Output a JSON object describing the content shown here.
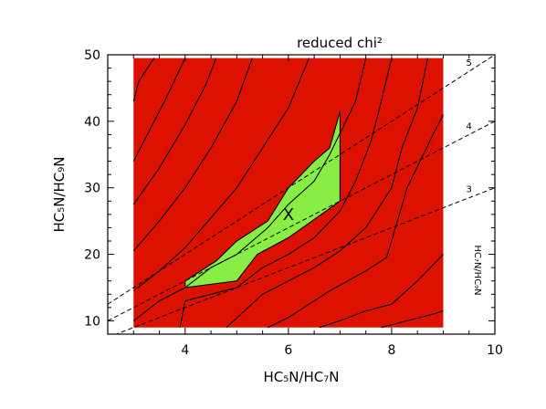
{
  "chart_data": {
    "type": "heatmap",
    "title": "reduced chi²",
    "xlabel": "HC₅N/HC₇N",
    "ylabel": "HC₅N/HC₉N",
    "right_label": "HC₇N/HC₉N",
    "xlim": [
      2.5,
      10
    ],
    "ylim": [
      8,
      50
    ],
    "x_ticks": [
      4,
      6,
      8,
      10
    ],
    "y_ticks": [
      10,
      20,
      30,
      40,
      50
    ],
    "grid": false,
    "colors": {
      "background_region": "#dd1100",
      "best_fit_region": "#88ee44",
      "contour": "#000000",
      "ratio_line": "#000000"
    },
    "data_extent": {
      "x": [
        3,
        9
      ],
      "y": [
        9,
        49.5
      ]
    },
    "best_fit_region": [
      [
        4,
        15
      ],
      [
        5,
        16
      ],
      [
        5.4,
        20
      ],
      [
        6,
        22.5
      ],
      [
        7,
        28
      ],
      [
        7,
        41.5
      ],
      [
        6.8,
        36
      ],
      [
        6.5,
        34
      ],
      [
        6,
        30
      ],
      [
        5.6,
        25
      ],
      [
        5,
        22
      ],
      [
        4.6,
        19
      ],
      [
        4,
        16
      ]
    ],
    "best_fit_marker": {
      "label": "X",
      "x": 6,
      "y": 26
    },
    "ratio_lines": [
      {
        "label": "3",
        "slope": 3,
        "intercept": 0
      },
      {
        "label": "4",
        "slope": 4,
        "intercept": 0
      },
      {
        "label": "5",
        "slope": 5,
        "intercept": 0
      }
    ],
    "contours": [
      [
        [
          3,
          43
        ],
        [
          3.1,
          46
        ],
        [
          3.4,
          49.5
        ]
      ],
      [
        [
          3,
          34
        ],
        [
          3.3,
          38.5
        ],
        [
          3.6,
          43
        ],
        [
          4,
          49.5
        ]
      ],
      [
        [
          3,
          27.5
        ],
        [
          3.5,
          33
        ],
        [
          4,
          39.5
        ],
        [
          4.4,
          45.5
        ],
        [
          4.6,
          49.5
        ]
      ],
      [
        [
          3,
          20.5
        ],
        [
          3.5,
          25
        ],
        [
          4,
          30
        ],
        [
          4.5,
          36
        ],
        [
          5,
          43
        ],
        [
          5.3,
          49.5
        ]
      ],
      [
        [
          3,
          14.5
        ],
        [
          3.5,
          17.5
        ],
        [
          4,
          21
        ],
        [
          4.5,
          25.5
        ],
        [
          5,
          30
        ],
        [
          5.5,
          36
        ],
        [
          6,
          42
        ],
        [
          6.4,
          49.5
        ]
      ],
      [
        [
          3,
          10
        ],
        [
          3.5,
          13
        ],
        [
          4,
          15
        ],
        [
          4.5,
          18
        ],
        [
          5,
          20
        ],
        [
          5.6,
          24
        ],
        [
          6,
          27.5
        ],
        [
          6.5,
          31
        ],
        [
          6.8,
          35
        ],
        [
          7.3,
          43
        ],
        [
          7.5,
          49.5
        ]
      ],
      [
        [
          3.9,
          9
        ],
        [
          4,
          13
        ],
        [
          4.5,
          14
        ],
        [
          5,
          15
        ],
        [
          5.5,
          18
        ],
        [
          6,
          20
        ],
        [
          6.5,
          22.5
        ],
        [
          7,
          26.5
        ],
        [
          7.3,
          31
        ],
        [
          7.6,
          37
        ],
        [
          7.8,
          43
        ],
        [
          8,
          49.5
        ]
      ],
      [
        [
          4.8,
          9
        ],
        [
          5.5,
          14
        ],
        [
          6,
          16
        ],
        [
          6.5,
          18
        ],
        [
          7,
          20.5
        ],
        [
          7.5,
          24
        ],
        [
          8,
          30
        ],
        [
          8.2,
          36
        ],
        [
          8.5,
          42
        ],
        [
          8.7,
          49.5
        ]
      ],
      [
        [
          5.6,
          9
        ],
        [
          6,
          10.5
        ],
        [
          6.8,
          14.5
        ],
        [
          7.5,
          17.5
        ],
        [
          7.9,
          19.5
        ],
        [
          8,
          22
        ],
        [
          8.3,
          30
        ],
        [
          8.8,
          38
        ],
        [
          9,
          41
        ]
      ],
      [
        [
          6.6,
          9
        ],
        [
          7,
          10
        ],
        [
          7.5,
          11.5
        ],
        [
          8,
          12.5
        ],
        [
          8.5,
          16
        ],
        [
          9,
          20
        ]
      ],
      [
        [
          7.8,
          9
        ],
        [
          8.3,
          10
        ],
        [
          8.8,
          11
        ],
        [
          9,
          11.5
        ]
      ]
    ]
  }
}
